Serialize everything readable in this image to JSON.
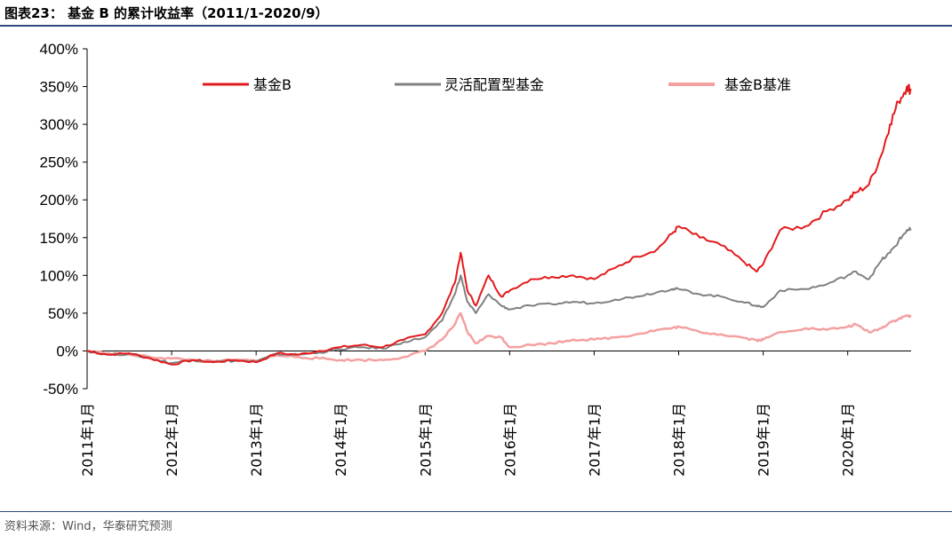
{
  "header": {
    "title": "图表23： 基金 B 的累计收益率（2011/1-2020/9）"
  },
  "footer": {
    "source": "资料来源：Wind，华泰研究预测"
  },
  "colors": {
    "fund_b": "#e31a1c",
    "flexible": "#808080",
    "benchmark": "#f4a0a0",
    "rule": "#2f4a7a"
  },
  "chart_data": {
    "type": "line",
    "title": "",
    "xlabel": "",
    "ylabel": "",
    "ylim": [
      -50,
      400
    ],
    "y_unit": "%",
    "y_ticks": [
      "400%",
      "350%",
      "300%",
      "250%",
      "200%",
      "150%",
      "100%",
      "50%",
      "0%",
      "-50%"
    ],
    "y_tick_values": [
      400,
      350,
      300,
      250,
      200,
      150,
      100,
      50,
      0,
      -50
    ],
    "x_ticks": [
      "2011年1月",
      "2012年1月",
      "2013年1月",
      "2014年1月",
      "2015年1月",
      "2016年1月",
      "2017年1月",
      "2018年1月",
      "2019年1月",
      "2020年1月"
    ],
    "x_range": [
      2011.0,
      2020.75
    ],
    "legend_position": "top",
    "series": [
      {
        "name": "基金B",
        "color": "#e31a1c",
        "x": [
          2011.0,
          2011.25,
          2011.5,
          2011.75,
          2012.0,
          2012.25,
          2012.5,
          2012.75,
          2013.0,
          2013.25,
          2013.5,
          2013.75,
          2014.0,
          2014.25,
          2014.5,
          2014.75,
          2015.0,
          2015.2,
          2015.35,
          2015.42,
          2015.5,
          2015.6,
          2015.75,
          2015.9,
          2016.0,
          2016.25,
          2016.5,
          2016.75,
          2017.0,
          2017.25,
          2017.5,
          2017.75,
          2017.92,
          2018.0,
          2018.25,
          2018.5,
          2018.75,
          2018.92,
          2019.0,
          2019.2,
          2019.5,
          2019.75,
          2020.0,
          2020.1,
          2020.25,
          2020.4,
          2020.5,
          2020.6,
          2020.7,
          2020.75
        ],
        "values": [
          0,
          -5,
          -3,
          -10,
          -18,
          -12,
          -15,
          -12,
          -15,
          -3,
          -5,
          0,
          5,
          8,
          5,
          15,
          22,
          50,
          90,
          130,
          80,
          60,
          100,
          72,
          80,
          95,
          98,
          100,
          95,
          110,
          125,
          135,
          155,
          165,
          150,
          140,
          120,
          105,
          115,
          160,
          165,
          185,
          200,
          210,
          220,
          260,
          300,
          330,
          350,
          345
        ]
      },
      {
        "name": "灵活配置型基金",
        "color": "#808080",
        "x": [
          2011.0,
          2011.25,
          2011.5,
          2011.75,
          2012.0,
          2012.25,
          2012.5,
          2012.75,
          2013.0,
          2013.25,
          2013.5,
          2013.75,
          2014.0,
          2014.25,
          2014.5,
          2014.75,
          2015.0,
          2015.2,
          2015.35,
          2015.42,
          2015.5,
          2015.6,
          2015.75,
          2015.9,
          2016.0,
          2016.25,
          2016.5,
          2016.75,
          2017.0,
          2017.25,
          2017.5,
          2017.75,
          2017.92,
          2018.0,
          2018.25,
          2018.5,
          2018.75,
          2018.92,
          2019.0,
          2019.2,
          2019.5,
          2019.75,
          2020.0,
          2020.1,
          2020.25,
          2020.4,
          2020.5,
          2020.6,
          2020.7,
          2020.75
        ],
        "values": [
          0,
          -5,
          -4,
          -10,
          -16,
          -12,
          -14,
          -13,
          -14,
          -4,
          -5,
          -2,
          2,
          5,
          3,
          12,
          18,
          40,
          75,
          100,
          65,
          50,
          75,
          60,
          55,
          60,
          62,
          65,
          63,
          68,
          72,
          78,
          82,
          82,
          75,
          72,
          65,
          60,
          58,
          80,
          82,
          88,
          100,
          105,
          95,
          120,
          130,
          145,
          160,
          160
        ]
      },
      {
        "name": "基金B基准",
        "color": "#f4a0a0",
        "x": [
          2011.0,
          2011.25,
          2011.5,
          2011.75,
          2012.0,
          2012.25,
          2012.5,
          2012.75,
          2013.0,
          2013.25,
          2013.5,
          2013.75,
          2014.0,
          2014.25,
          2014.5,
          2014.75,
          2015.0,
          2015.2,
          2015.35,
          2015.42,
          2015.5,
          2015.6,
          2015.75,
          2015.9,
          2016.0,
          2016.25,
          2016.5,
          2016.75,
          2017.0,
          2017.25,
          2017.5,
          2017.75,
          2017.92,
          2018.0,
          2018.25,
          2018.5,
          2018.75,
          2018.92,
          2019.0,
          2019.2,
          2019.5,
          2019.75,
          2020.0,
          2020.1,
          2020.25,
          2020.4,
          2020.5,
          2020.6,
          2020.7,
          2020.75
        ],
        "values": [
          0,
          -3,
          -5,
          -8,
          -10,
          -12,
          -14,
          -12,
          -13,
          -6,
          -8,
          -10,
          -12,
          -12,
          -12,
          -8,
          0,
          15,
          35,
          50,
          25,
          10,
          20,
          18,
          5,
          8,
          10,
          15,
          15,
          18,
          22,
          28,
          30,
          32,
          25,
          22,
          18,
          14,
          15,
          25,
          30,
          28,
          32,
          35,
          25,
          30,
          38,
          42,
          47,
          45
        ]
      }
    ]
  }
}
